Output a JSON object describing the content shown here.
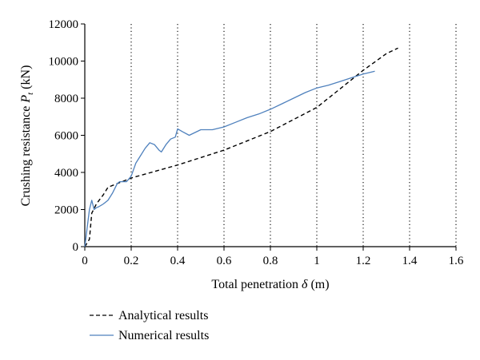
{
  "colors": {
    "analytical": "#000000",
    "numerical": "#4F81BD",
    "grid": "#000000",
    "axis": "#000000"
  },
  "chart_data": {
    "type": "line",
    "xlabel": "Total penetration δ (m)",
    "ylabel": "Crushing resistance P (kN)",
    "xlabel_parts": {
      "text": "Total penetration ",
      "symbol": "δ",
      "unit": " (m)"
    },
    "ylabel_parts": {
      "text": "Crushing resistance ",
      "symbol": "P",
      "subscript": "t",
      "unit": " (kN)"
    },
    "xlim": [
      0,
      1.6
    ],
    "ylim": [
      0,
      12000
    ],
    "xticks": [
      "0",
      "0.2",
      "0.4",
      "0.6",
      "0.8",
      "1",
      "1.2",
      "1.4",
      "1.6"
    ],
    "yticks": [
      "0",
      "2000",
      "4000",
      "6000",
      "8000",
      "10000",
      "12000"
    ],
    "grid": "vertical dotted",
    "legend_position": "bottom-left, below plot",
    "series": [
      {
        "name": "Analytical results",
        "style": "dashed",
        "color": "#000000",
        "x": [
          0,
          0.02,
          0.03,
          0.05,
          0.08,
          0.1,
          0.2,
          0.4,
          0.6,
          0.8,
          1.0,
          1.1,
          1.2,
          1.3,
          1.35
        ],
        "y": [
          0,
          400,
          1800,
          2300,
          2800,
          3200,
          3700,
          4400,
          5200,
          6200,
          7500,
          8500,
          9500,
          10400,
          10700
        ]
      },
      {
        "name": "Numerical results",
        "style": "solid",
        "color": "#4F81BD",
        "x": [
          0,
          0.005,
          0.01,
          0.02,
          0.03,
          0.04,
          0.05,
          0.06,
          0.08,
          0.1,
          0.12,
          0.14,
          0.15,
          0.18,
          0.2,
          0.22,
          0.24,
          0.26,
          0.28,
          0.3,
          0.32,
          0.33,
          0.35,
          0.37,
          0.39,
          0.4,
          0.42,
          0.45,
          0.5,
          0.55,
          0.6,
          0.65,
          0.7,
          0.75,
          0.8,
          0.85,
          0.9,
          0.95,
          1.0,
          1.05,
          1.1,
          1.15,
          1.2,
          1.25
        ],
        "y": [
          0,
          500,
          1000,
          2000,
          2500,
          2000,
          2100,
          2150,
          2300,
          2500,
          2900,
          3400,
          3500,
          3500,
          3800,
          4500,
          4900,
          5300,
          5600,
          5500,
          5200,
          5100,
          5500,
          5800,
          5900,
          6350,
          6200,
          6000,
          6300,
          6300,
          6450,
          6700,
          6950,
          7150,
          7400,
          7700,
          8000,
          8300,
          8550,
          8700,
          8900,
          9100,
          9300,
          9450
        ]
      }
    ]
  }
}
